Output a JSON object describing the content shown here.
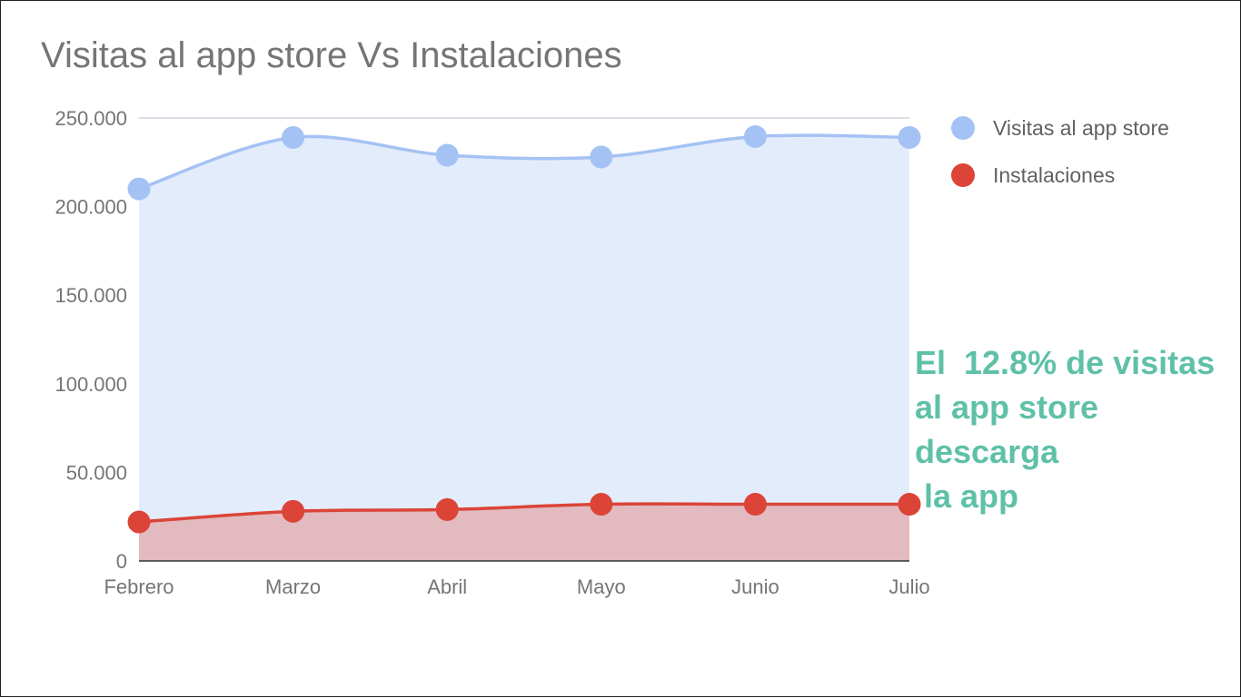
{
  "chart_data": {
    "type": "area",
    "title": "Visitas al app store Vs Instalaciones",
    "categories": [
      "Febrero",
      "Marzo",
      "Abril",
      "Mayo",
      "Junio",
      "Julio"
    ],
    "series": [
      {
        "name": "Visitas al app store",
        "color": "#a4c2f4",
        "fill": "#e3ecfb",
        "values": [
          210000,
          239000,
          229000,
          228000,
          239500,
          239000
        ]
      },
      {
        "name": "Instalaciones",
        "color": "#db4437",
        "fill": "#e2bac0",
        "values": [
          22000,
          28000,
          29000,
          32000,
          32000,
          32000
        ]
      }
    ],
    "yticks": [
      "0",
      "50.000",
      "100.000",
      "150.000",
      "200.000",
      "250.000"
    ],
    "ylim": [
      0,
      250000
    ],
    "grid": true,
    "legend_position": "right",
    "annotation": [
      "El  12.8% de visitas",
      "al app store",
      "descarga",
      " la app"
    ],
    "annotation_color": "#5fc0a8"
  }
}
